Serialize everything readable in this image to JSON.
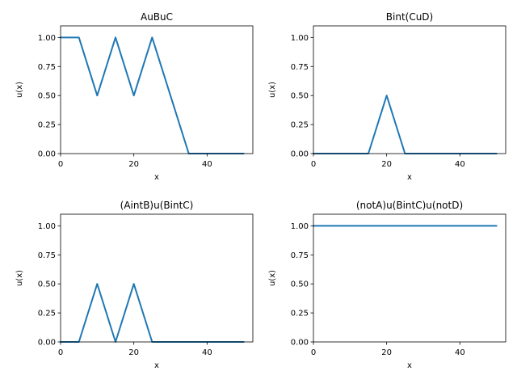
{
  "colors": {
    "series": "#1f77b4",
    "background": "#ffffff"
  },
  "chart_data": [
    {
      "type": "line",
      "title": "AuBuC",
      "xlabel": "x",
      "ylabel": "u(x)",
      "xlim": [
        0,
        52.5
      ],
      "ylim": [
        0,
        1.1
      ],
      "xticks": [
        0,
        20,
        40
      ],
      "xtick_labels": [
        "0",
        "20",
        "40"
      ],
      "yticks": [
        0,
        0.25,
        0.5,
        0.75,
        1.0
      ],
      "ytick_labels": [
        "0.00",
        "0.25",
        "0.50",
        "0.75",
        "1.00"
      ],
      "grid": false,
      "series": [
        {
          "x": [
            0,
            5,
            10,
            15,
            20,
            25,
            35,
            50
          ],
          "y": [
            1,
            1,
            0.5,
            1,
            0.5,
            1,
            0,
            0
          ]
        }
      ]
    },
    {
      "type": "line",
      "title": "Bint(CuD)",
      "xlabel": "x",
      "ylabel": "u(x)",
      "xlim": [
        0,
        52.5
      ],
      "ylim": [
        0,
        1.1
      ],
      "xticks": [
        0,
        20,
        40
      ],
      "xtick_labels": [
        "0",
        "20",
        "40"
      ],
      "yticks": [
        0,
        0.25,
        0.5,
        0.75,
        1.0
      ],
      "ytick_labels": [
        "0.00",
        "0.25",
        "0.50",
        "0.75",
        "1.00"
      ],
      "grid": false,
      "series": [
        {
          "x": [
            0,
            15,
            20,
            25,
            50
          ],
          "y": [
            0,
            0,
            0.5,
            0,
            0
          ]
        }
      ]
    },
    {
      "type": "line",
      "title": "(AintB)u(BintC)",
      "xlabel": "x",
      "ylabel": "u(x)",
      "xlim": [
        0,
        52.5
      ],
      "ylim": [
        0,
        1.1
      ],
      "xticks": [
        0,
        20,
        40
      ],
      "xtick_labels": [
        "0",
        "20",
        "40"
      ],
      "yticks": [
        0,
        0.25,
        0.5,
        0.75,
        1.0
      ],
      "ytick_labels": [
        "0.00",
        "0.25",
        "0.50",
        "0.75",
        "1.00"
      ],
      "grid": false,
      "series": [
        {
          "x": [
            0,
            5,
            10,
            15,
            20,
            25,
            50
          ],
          "y": [
            0,
            0,
            0.5,
            0,
            0.5,
            0,
            0
          ]
        }
      ]
    },
    {
      "type": "line",
      "title": "(notA)u(BintC)u(notD)",
      "xlabel": "x",
      "ylabel": "u(x)",
      "xlim": [
        0,
        52.5
      ],
      "ylim": [
        0,
        1.1
      ],
      "xticks": [
        0,
        20,
        40
      ],
      "xtick_labels": [
        "0",
        "20",
        "40"
      ],
      "yticks": [
        0,
        0.25,
        0.5,
        0.75,
        1.0
      ],
      "ytick_labels": [
        "0.00",
        "0.25",
        "0.50",
        "0.75",
        "1.00"
      ],
      "grid": false,
      "series": [
        {
          "x": [
            0,
            50
          ],
          "y": [
            1,
            1
          ]
        }
      ]
    }
  ]
}
